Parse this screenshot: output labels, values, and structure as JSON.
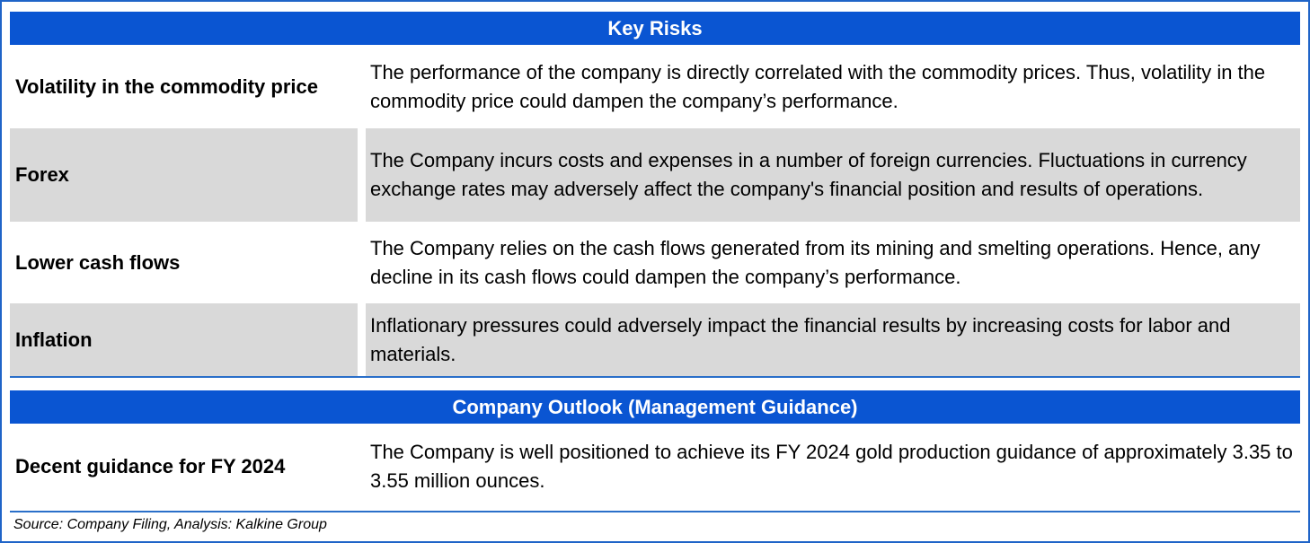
{
  "key_risks": {
    "title": "Key Risks",
    "rows": [
      {
        "label": "Volatility in the commodity price",
        "description": "The performance of the company is directly correlated with the commodity prices. Thus, volatility in the commodity price could dampen the company’s performance."
      },
      {
        "label": "Forex",
        "description": "The Company incurs costs and expenses in a number of foreign currencies. Fluctuations in currency exchange rates may adversely affect the company's financial position and results of operations."
      },
      {
        "label": "Lower cash flows",
        "description": "The Company relies on the cash flows generated from its mining and smelting operations. Hence, any decline in its cash flows could dampen the company’s performance."
      },
      {
        "label": "Inflation",
        "description": "Inflationary pressures could adversely impact the financial results by increasing costs for labor and materials."
      }
    ]
  },
  "outlook": {
    "title": "Company Outlook (Management Guidance)",
    "rows": [
      {
        "label": "Decent guidance for FY 2024",
        "description": "The Company is well positioned to achieve its FY 2024 gold production guidance of approximately 3.35 to 3.55 million ounces."
      }
    ]
  },
  "source": "Source: Company Filing, Analysis: Kalkine Group",
  "colors": {
    "header_bg": "#0a55d2",
    "shade_bg": "#d9d9d9",
    "rule": "#2a6fc9"
  }
}
